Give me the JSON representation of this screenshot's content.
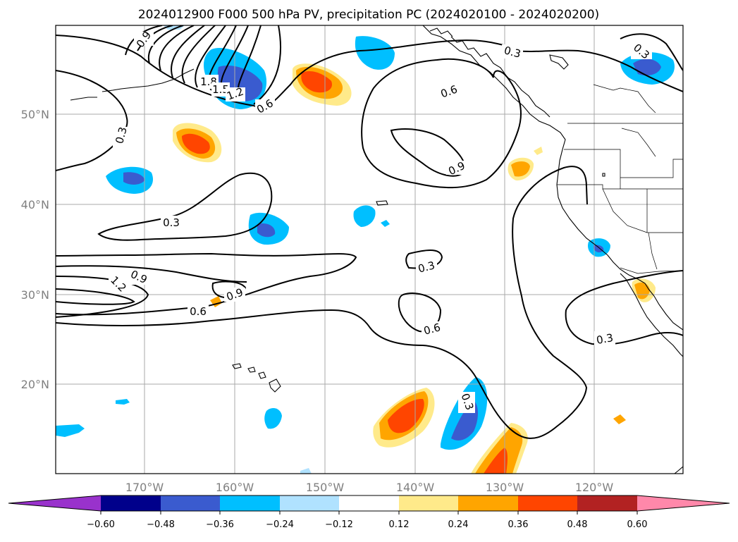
{
  "title": "2024012900 F000 500 hPa PV, precipitation PC (2024020100 - 2024020200)",
  "map": {
    "lon_labels": [
      "170°W",
      "160°W",
      "150°W",
      "140°W",
      "130°W",
      "120°W"
    ],
    "lat_labels": [
      "50°N",
      "40°N",
      "30°N",
      "20°N"
    ],
    "contour_labels": [
      "0.3",
      "0.6",
      "0.9",
      "1.2",
      "1.5",
      "1.8"
    ],
    "contour_color": "#000000",
    "grid_color": "#a9a9a9"
  },
  "colorbar": {
    "ticks": [
      "−0.60",
      "−0.48",
      "−0.36",
      "−0.24",
      "−0.12",
      "0.12",
      "0.24",
      "0.36",
      "0.48",
      "0.60"
    ],
    "colors": [
      "#9932cc",
      "#00008b",
      "#3a5bcf",
      "#00bfff",
      "#b0e2ff",
      "#ffffff",
      "#ffea8a",
      "#ffa500",
      "#ff4500",
      "#b22222",
      "#ff88aa"
    ],
    "extend": "both"
  }
}
